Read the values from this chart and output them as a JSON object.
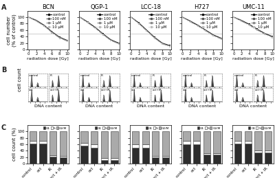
{
  "cell_lines": [
    "BCN",
    "QGP-1",
    "LCC-18",
    "H727",
    "UMC-11"
  ],
  "radiation_doses": [
    0,
    2,
    4,
    6,
    8,
    10
  ],
  "survival_curves": {
    "BCN": {
      "control": [
        100,
        90,
        75,
        55,
        38,
        28
      ],
      "100nM": [
        100,
        89,
        74,
        54,
        37,
        27
      ],
      "1uM": [
        100,
        88,
        73,
        53,
        36,
        26
      ],
      "10uM": [
        100,
        87,
        72,
        52,
        35,
        25
      ]
    },
    "QGP-1": {
      "control": [
        100,
        85,
        68,
        48,
        30,
        20
      ],
      "100nM": [
        100,
        84,
        67,
        47,
        29,
        19
      ],
      "1uM": [
        100,
        83,
        66,
        46,
        28,
        18
      ],
      "10uM": [
        100,
        82,
        65,
        45,
        27,
        17
      ]
    },
    "LCC-18": {
      "control": [
        100,
        82,
        60,
        38,
        20,
        12
      ],
      "100nM": [
        100,
        81,
        59,
        37,
        19,
        11
      ],
      "1uM": [
        100,
        80,
        58,
        36,
        18,
        10
      ],
      "10uM": [
        100,
        79,
        57,
        35,
        17,
        9
      ]
    },
    "H727": {
      "control": [
        100,
        88,
        75,
        60,
        45,
        35
      ],
      "100nM": [
        100,
        87,
        74,
        59,
        44,
        34
      ],
      "1uM": [
        100,
        86,
        73,
        58,
        43,
        33
      ],
      "10uM": [
        100,
        85,
        72,
        57,
        42,
        32
      ]
    },
    "UMC-11": {
      "control": [
        100,
        90,
        78,
        63,
        50,
        40
      ],
      "100nM": [
        100,
        89,
        77,
        62,
        49,
        39
      ],
      "1uM": [
        100,
        88,
        76,
        61,
        48,
        38
      ],
      "10uM": [
        100,
        87,
        75,
        60,
        47,
        37
      ]
    }
  },
  "legend_labels_A": [
    "control",
    "100 nM",
    "1 μM",
    "10 μM"
  ],
  "bar_data": {
    "BCN": {
      "G1": [
        63,
        62,
        22,
        20
      ],
      "S": [
        8,
        8,
        5,
        5
      ],
      "G2M": [
        29,
        30,
        73,
        75
      ]
    },
    "QGP-1": {
      "G1": [
        55,
        50,
        12,
        12
      ],
      "S": [
        10,
        10,
        5,
        5
      ],
      "G2M": [
        35,
        40,
        83,
        83
      ]
    },
    "LCC-18": {
      "G1": [
        50,
        50,
        20,
        20
      ],
      "S": [
        10,
        10,
        5,
        5
      ],
      "G2M": [
        40,
        40,
        75,
        75
      ]
    },
    "H727": {
      "G1": [
        60,
        60,
        28,
        28
      ],
      "S": [
        10,
        10,
        5,
        5
      ],
      "G2M": [
        30,
        30,
        67,
        67
      ]
    },
    "UMC-11": {
      "G1": [
        62,
        62,
        35,
        35
      ],
      "S": [
        8,
        8,
        5,
        5
      ],
      "G2M": [
        30,
        30,
        60,
        60
      ]
    }
  },
  "bar_xlabels": [
    "control",
    "oct",
    "IR",
    "oct + IR"
  ],
  "bar_colors": {
    "G1": "#2d2d2d",
    "S": "#ffffff",
    "G2M": "#aaaaaa"
  },
  "bar_edge_color": "#333333",
  "ylabel_A": "cell number\n(% of control)",
  "ylabel_B": "cell count",
  "ylabel_C": "cell count (%)",
  "ylim_A": [
    0,
    120
  ],
  "ylim_C": [
    0,
    120
  ],
  "hline_A": 50,
  "xlabel_A": "radiation dose [Gy]",
  "panel_labels": [
    "A",
    "B",
    "C"
  ],
  "bg_color": "#ffffff",
  "grid_color": "#bbbbbb",
  "text_color": "#222222",
  "fontsize_title": 6,
  "fontsize_label": 5,
  "fontsize_tick": 4,
  "fontsize_panel": 7,
  "fontsize_legend": 3.8
}
